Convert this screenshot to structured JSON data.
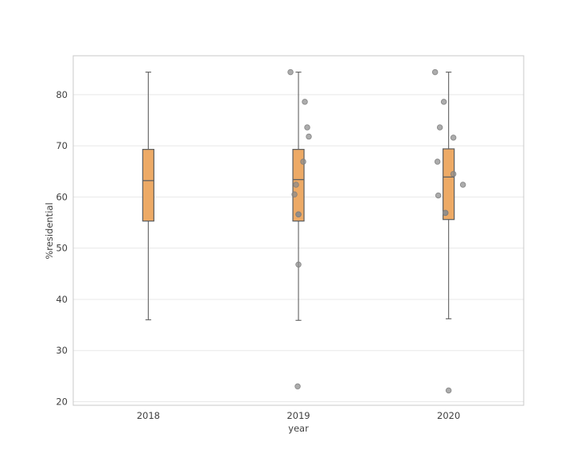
{
  "chart_data": {
    "type": "box",
    "title": "",
    "xlabel": "year",
    "ylabel": "%residential",
    "categories": [
      "2018",
      "2019",
      "2020"
    ],
    "ylim": [
      19.3,
      87.6
    ],
    "yticks": [
      20,
      30,
      40,
      50,
      60,
      70,
      80
    ],
    "grid": "horizontal",
    "legend": "none",
    "boxes": [
      {
        "category": "2018",
        "whisker_low": 36.0,
        "q1": 55.3,
        "median": 63.2,
        "q3": 69.3,
        "whisker_high": 84.4,
        "points": []
      },
      {
        "category": "2019",
        "whisker_low": 35.9,
        "q1": 55.3,
        "median": 63.4,
        "q3": 69.3,
        "whisker_high": 84.4,
        "points": [
          {
            "dx": -10,
            "v": 84.4
          },
          {
            "dx": 8,
            "v": 78.6
          },
          {
            "dx": 11,
            "v": 73.6
          },
          {
            "dx": 13,
            "v": 71.8
          },
          {
            "dx": 6,
            "v": 66.9
          },
          {
            "dx": -3,
            "v": 62.4
          },
          {
            "dx": -5,
            "v": 60.5
          },
          {
            "dx": 0,
            "v": 56.6,
            "overlap": 2
          },
          {
            "dx": 0,
            "v": 46.8
          },
          {
            "dx": -1,
            "v": 23.0
          }
        ]
      },
      {
        "category": "2020",
        "whisker_low": 36.2,
        "q1": 55.6,
        "median": 63.9,
        "q3": 69.4,
        "whisker_high": 84.4,
        "points": [
          {
            "dx": -17,
            "v": 84.4
          },
          {
            "dx": -6,
            "v": 78.6
          },
          {
            "dx": -11,
            "v": 73.6
          },
          {
            "dx": 6,
            "v": 71.6
          },
          {
            "dx": -14,
            "v": 66.9
          },
          {
            "dx": 6,
            "v": 64.5
          },
          {
            "dx": 18,
            "v": 62.4
          },
          {
            "dx": -13,
            "v": 60.3
          },
          {
            "dx": -4,
            "v": 56.9,
            "overlap": 2
          },
          {
            "dx": 0,
            "v": 22.2
          }
        ]
      }
    ],
    "colors": {
      "background": "#ffffff",
      "box_fill": "#edaa66",
      "box_edge": "#606060",
      "whisker": "#606060",
      "median": "#606060",
      "point_fill": "#8c8c8c",
      "point_edge": "#7d7d7d",
      "grid": "#e8e8e8",
      "spine": "#c9c9c9",
      "text": "#404040"
    }
  }
}
